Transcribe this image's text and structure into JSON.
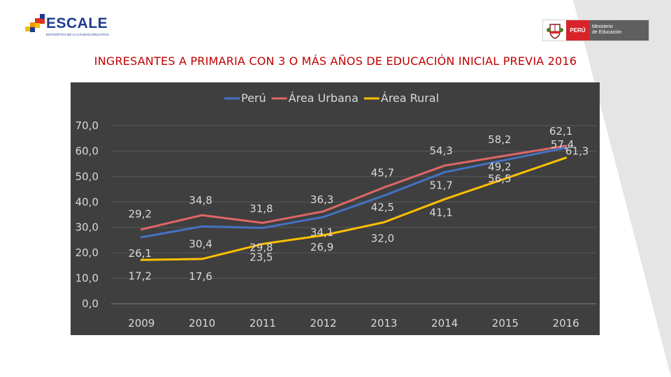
{
  "header": {
    "logo_text": "ESCALE",
    "logo_subtitle": "ESTADÍSTICA DE LA CALIDAD EDUCATIVA",
    "ministry_country": "PERÚ",
    "ministry_name": "Ministerio\nde Educación"
  },
  "colors": {
    "title": "#c00000",
    "chart_background": "#3f3f3f",
    "text": "#d9d9d9",
    "peru": "#4472c4",
    "urbana": "#e06666",
    "rural": "#ffc000"
  },
  "chart_data": {
    "type": "line",
    "title": "INGRESANTES A PRIMARIA CON 3 O MÁS AÑOS DE EDUCACIÓN INICIAL PREVIA 2016",
    "categories": [
      "2009",
      "2010",
      "2011",
      "2012",
      "2013",
      "2014",
      "2015",
      "2016"
    ],
    "y_ticks": [
      "0,0",
      "10,0",
      "20,0",
      "30,0",
      "40,0",
      "50,0",
      "60,0",
      "70,0"
    ],
    "ylim": [
      0,
      70
    ],
    "legend_position": "top-center",
    "grid": true,
    "series": [
      {
        "name": "Perú",
        "color": "#4472c4",
        "values": [
          26.1,
          30.4,
          29.8,
          34.1,
          42.5,
          51.7,
          56.5,
          61.3
        ],
        "labels": [
          "26,1",
          "30,4",
          "29,8",
          "34,1",
          "42,5",
          "51,7",
          "56,5",
          "61,3"
        ]
      },
      {
        "name": "Área Urbana",
        "color": "#e06666",
        "values": [
          29.2,
          34.8,
          31.8,
          36.3,
          45.7,
          54.3,
          58.2,
          62.1
        ],
        "labels": [
          "29,2",
          "34,8",
          "31,8",
          "36,3",
          "45,7",
          "54,3",
          "58,2",
          "62,1"
        ]
      },
      {
        "name": "Área Rural",
        "color": "#ffc000",
        "values": [
          17.2,
          17.6,
          23.5,
          26.9,
          32.0,
          41.1,
          49.2,
          57.4
        ],
        "labels": [
          "17,2",
          "17,6",
          "23,5",
          "26,9",
          "32,0",
          "41,1",
          "49,2",
          "57,4"
        ]
      }
    ]
  }
}
